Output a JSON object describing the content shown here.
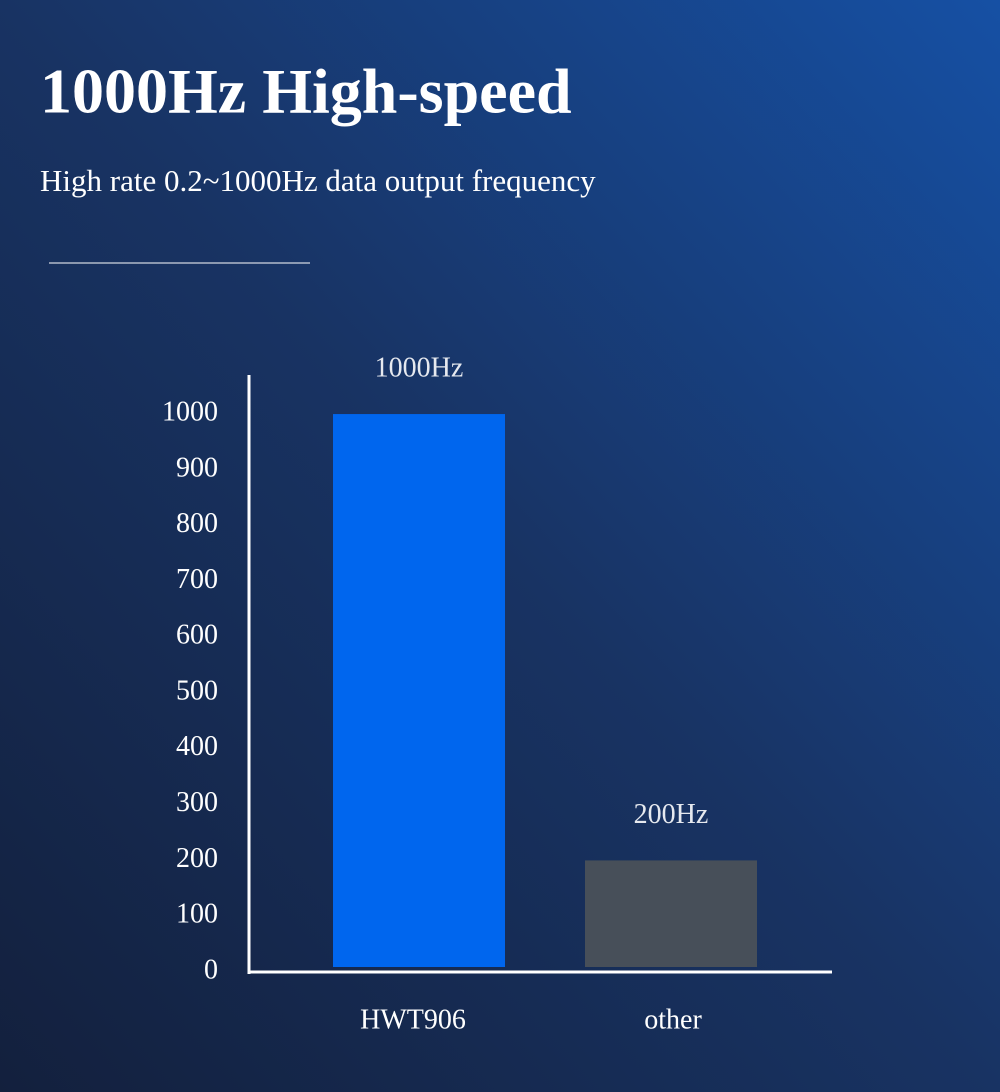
{
  "chart_data": {
    "type": "bar",
    "title": "1000Hz High-speed",
    "subtitle": "High rate 0.2~1000Hz data output frequency",
    "categories": [
      "HWT906",
      "other"
    ],
    "values": [
      1000,
      200
    ],
    "value_labels": [
      "1000Hz",
      "200Hz"
    ],
    "colors": [
      "#0066ee",
      "#474f59"
    ],
    "ylim": [
      0,
      1070
    ],
    "yticks": [
      0,
      100,
      200,
      300,
      400,
      500,
      600,
      700,
      800,
      900,
      1000
    ],
    "grid": false
  }
}
